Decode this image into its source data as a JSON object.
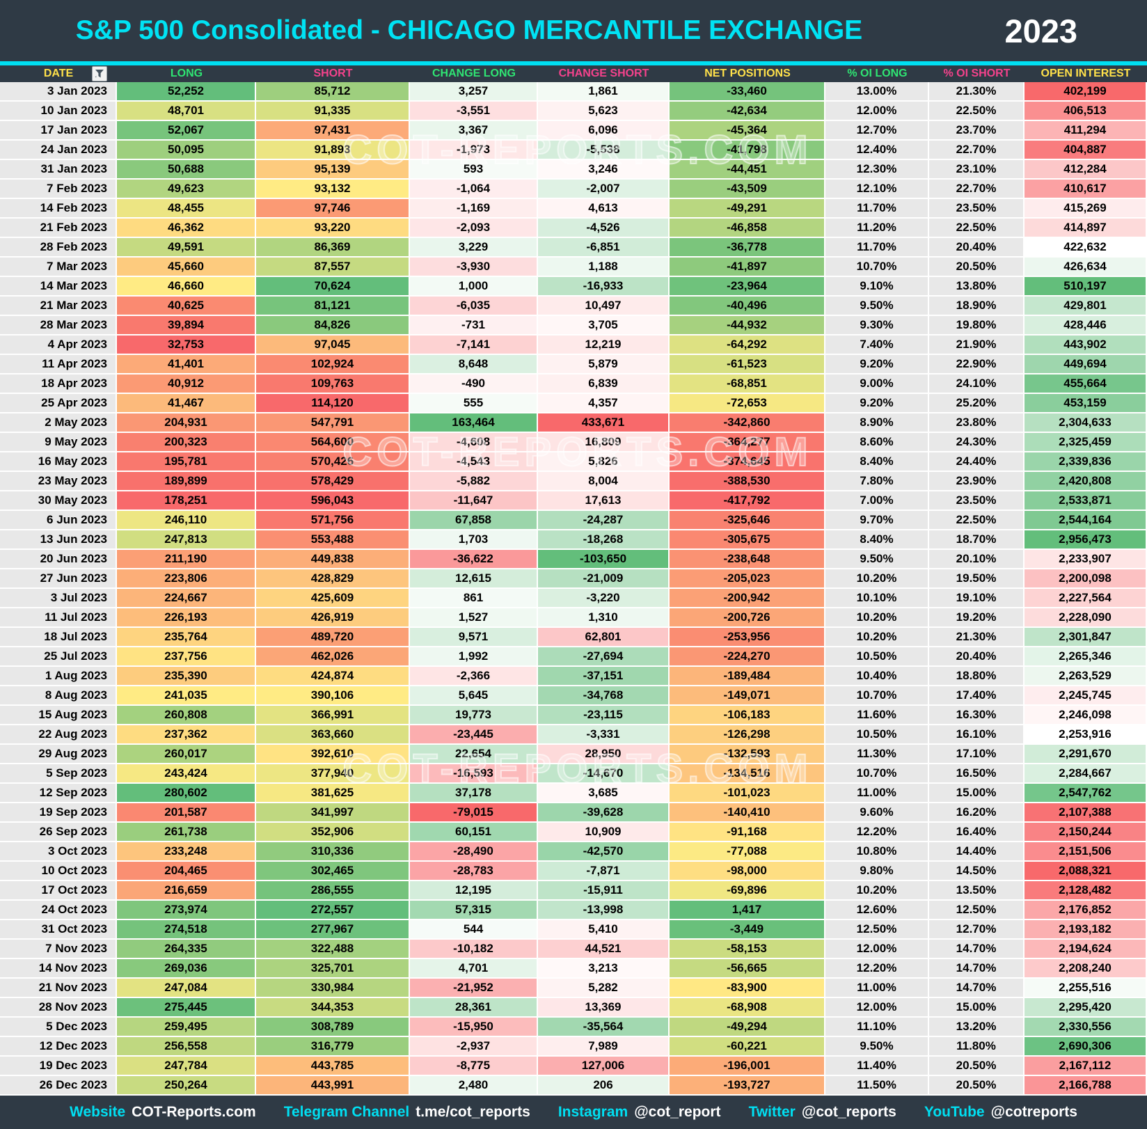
{
  "header": {
    "title": "S&P 500 Consolidated - CHICAGO MERCANTILE EXCHANGE",
    "year": "2023"
  },
  "watermark_text": "COT-REPORTS.COM",
  "palette": {
    "red": "#F8696B",
    "yellow": "#FFEB84",
    "green": "#63BE7B",
    "white": "#FFFFFF",
    "header_bg": "#2F3A45",
    "cyan": "#00DFF2",
    "col_yellow": "#FFE14A",
    "col_green": "#2FE573",
    "col_pink": "#F5428C",
    "gray_cell": "#E8E8E8"
  },
  "chart_data": {
    "type": "table",
    "title": "S&P 500 Consolidated - CHICAGO MERCANTILE EXCHANGE",
    "year": "2023",
    "columns": [
      {
        "id": "date",
        "label": "DATE",
        "hue": "yellow",
        "has_filter": true
      },
      {
        "id": "long",
        "label": "LONG",
        "hue": "green"
      },
      {
        "id": "short",
        "label": "SHORT",
        "hue": "pink"
      },
      {
        "id": "change_long",
        "label": "CHANGE LONG",
        "hue": "green"
      },
      {
        "id": "change_short",
        "label": "CHANGE SHORT",
        "hue": "pink"
      },
      {
        "id": "net",
        "label": "NET POSITIONS",
        "hue": "yellow"
      },
      {
        "id": "oi_long_pct",
        "label": "% OI LONG",
        "hue": "green"
      },
      {
        "id": "oi_short_pct",
        "label": "% OI SHORT",
        "hue": "pink"
      },
      {
        "id": "open_interest",
        "label": "OPEN INTEREST",
        "hue": "yellow"
      }
    ],
    "rows": [
      {
        "date": "3 Jan 2023",
        "long": 52252,
        "short": 85712,
        "change_long": 3257,
        "change_short": 1861,
        "net": -33460,
        "oi_long_pct": "13.00%",
        "oi_short_pct": "21.30%",
        "open_interest": 402199
      },
      {
        "date": "10 Jan 2023",
        "long": 48701,
        "short": 91335,
        "change_long": -3551,
        "change_short": 5623,
        "net": -42634,
        "oi_long_pct": "12.00%",
        "oi_short_pct": "22.50%",
        "open_interest": 406513
      },
      {
        "date": "17 Jan 2023",
        "long": 52067,
        "short": 97431,
        "change_long": 3367,
        "change_short": 6096,
        "net": -45364,
        "oi_long_pct": "12.70%",
        "oi_short_pct": "23.70%",
        "open_interest": 411294
      },
      {
        "date": "24 Jan 2023",
        "long": 50095,
        "short": 91893,
        "change_long": -1973,
        "change_short": -5538,
        "net": -41798,
        "oi_long_pct": "12.40%",
        "oi_short_pct": "22.70%",
        "open_interest": 404887
      },
      {
        "date": "31 Jan 2023",
        "long": 50688,
        "short": 95139,
        "change_long": 593,
        "change_short": 3246,
        "net": -44451,
        "oi_long_pct": "12.30%",
        "oi_short_pct": "23.10%",
        "open_interest": 412284
      },
      {
        "date": "7 Feb 2023",
        "long": 49623,
        "short": 93132,
        "change_long": -1064,
        "change_short": -2007,
        "net": -43509,
        "oi_long_pct": "12.10%",
        "oi_short_pct": "22.70%",
        "open_interest": 410617
      },
      {
        "date": "14 Feb 2023",
        "long": 48455,
        "short": 97746,
        "change_long": -1169,
        "change_short": 4613,
        "net": -49291,
        "oi_long_pct": "11.70%",
        "oi_short_pct": "23.50%",
        "open_interest": 415269
      },
      {
        "date": "21 Feb 2023",
        "long": 46362,
        "short": 93220,
        "change_long": -2093,
        "change_short": -4526,
        "net": -46858,
        "oi_long_pct": "11.20%",
        "oi_short_pct": "22.50%",
        "open_interest": 414897
      },
      {
        "date": "28 Feb 2023",
        "long": 49591,
        "short": 86369,
        "change_long": 3229,
        "change_short": -6851,
        "net": -36778,
        "oi_long_pct": "11.70%",
        "oi_short_pct": "20.40%",
        "open_interest": 422632
      },
      {
        "date": "7 Mar 2023",
        "long": 45660,
        "short": 87557,
        "change_long": -3930,
        "change_short": 1188,
        "net": -41897,
        "oi_long_pct": "10.70%",
        "oi_short_pct": "20.50%",
        "open_interest": 426634
      },
      {
        "date": "14 Mar 2023",
        "long": 46660,
        "short": 70624,
        "change_long": 1000,
        "change_short": -16933,
        "net": -23964,
        "oi_long_pct": "9.10%",
        "oi_short_pct": "13.80%",
        "open_interest": 510197
      },
      {
        "date": "21 Mar 2023",
        "long": 40625,
        "short": 81121,
        "change_long": -6035,
        "change_short": 10497,
        "net": -40496,
        "oi_long_pct": "9.50%",
        "oi_short_pct": "18.90%",
        "open_interest": 429801
      },
      {
        "date": "28 Mar 2023",
        "long": 39894,
        "short": 84826,
        "change_long": -731,
        "change_short": 3705,
        "net": -44932,
        "oi_long_pct": "9.30%",
        "oi_short_pct": "19.80%",
        "open_interest": 428446
      },
      {
        "date": "4 Apr 2023",
        "long": 32753,
        "short": 97045,
        "change_long": -7141,
        "change_short": 12219,
        "net": -64292,
        "oi_long_pct": "7.40%",
        "oi_short_pct": "21.90%",
        "open_interest": 443902
      },
      {
        "date": "11 Apr 2023",
        "long": 41401,
        "short": 102924,
        "change_long": 8648,
        "change_short": 5879,
        "net": -61523,
        "oi_long_pct": "9.20%",
        "oi_short_pct": "22.90%",
        "open_interest": 449694
      },
      {
        "date": "18 Apr 2023",
        "long": 40912,
        "short": 109763,
        "change_long": -490,
        "change_short": 6839,
        "net": -68851,
        "oi_long_pct": "9.00%",
        "oi_short_pct": "24.10%",
        "open_interest": 455664
      },
      {
        "date": "25 Apr 2023",
        "long": 41467,
        "short": 114120,
        "change_long": 555,
        "change_short": 4357,
        "net": -72653,
        "oi_long_pct": "9.20%",
        "oi_short_pct": "25.20%",
        "open_interest": 453159
      },
      {
        "date": "2 May 2023",
        "long": 204931,
        "short": 547791,
        "change_long": 163464,
        "change_short": 433671,
        "net": -342860,
        "oi_long_pct": "8.90%",
        "oi_short_pct": "23.80%",
        "open_interest": 2304633
      },
      {
        "date": "9 May 2023",
        "long": 200323,
        "short": 564600,
        "change_long": -4608,
        "change_short": 16809,
        "net": -364277,
        "oi_long_pct": "8.60%",
        "oi_short_pct": "24.30%",
        "open_interest": 2325459
      },
      {
        "date": "16 May 2023",
        "long": 195781,
        "short": 570426,
        "change_long": -4543,
        "change_short": 5826,
        "net": -374645,
        "oi_long_pct": "8.40%",
        "oi_short_pct": "24.40%",
        "open_interest": 2339836
      },
      {
        "date": "23 May 2023",
        "long": 189899,
        "short": 578429,
        "change_long": -5882,
        "change_short": 8004,
        "net": -388530,
        "oi_long_pct": "7.80%",
        "oi_short_pct": "23.90%",
        "open_interest": 2420808
      },
      {
        "date": "30 May 2023",
        "long": 178251,
        "short": 596043,
        "change_long": -11647,
        "change_short": 17613,
        "net": -417792,
        "oi_long_pct": "7.00%",
        "oi_short_pct": "23.50%",
        "open_interest": 2533871
      },
      {
        "date": "6 Jun 2023",
        "long": 246110,
        "short": 571756,
        "change_long": 67858,
        "change_short": -24287,
        "net": -325646,
        "oi_long_pct": "9.70%",
        "oi_short_pct": "22.50%",
        "open_interest": 2544164
      },
      {
        "date": "13 Jun 2023",
        "long": 247813,
        "short": 553488,
        "change_long": 1703,
        "change_short": -18268,
        "net": -305675,
        "oi_long_pct": "8.40%",
        "oi_short_pct": "18.70%",
        "open_interest": 2956473
      },
      {
        "date": "20 Jun 2023",
        "long": 211190,
        "short": 449838,
        "change_long": -36622,
        "change_short": -103650,
        "net": -238648,
        "oi_long_pct": "9.50%",
        "oi_short_pct": "20.10%",
        "open_interest": 2233907
      },
      {
        "date": "27 Jun 2023",
        "long": 223806,
        "short": 428829,
        "change_long": 12615,
        "change_short": -21009,
        "net": -205023,
        "oi_long_pct": "10.20%",
        "oi_short_pct": "19.50%",
        "open_interest": 2200098
      },
      {
        "date": "3 Jul 2023",
        "long": 224667,
        "short": 425609,
        "change_long": 861,
        "change_short": -3220,
        "net": -200942,
        "oi_long_pct": "10.10%",
        "oi_short_pct": "19.10%",
        "open_interest": 2227564
      },
      {
        "date": "11 Jul 2023",
        "long": 226193,
        "short": 426919,
        "change_long": 1527,
        "change_short": 1310,
        "net": -200726,
        "oi_long_pct": "10.20%",
        "oi_short_pct": "19.20%",
        "open_interest": 2228090
      },
      {
        "date": "18 Jul 2023",
        "long": 235764,
        "short": 489720,
        "change_long": 9571,
        "change_short": 62801,
        "net": -253956,
        "oi_long_pct": "10.20%",
        "oi_short_pct": "21.30%",
        "open_interest": 2301847
      },
      {
        "date": "25 Jul 2023",
        "long": 237756,
        "short": 462026,
        "change_long": 1992,
        "change_short": -27694,
        "net": -224270,
        "oi_long_pct": "10.50%",
        "oi_short_pct": "20.40%",
        "open_interest": 2265346
      },
      {
        "date": "1 Aug 2023",
        "long": 235390,
        "short": 424874,
        "change_long": -2366,
        "change_short": -37151,
        "net": -189484,
        "oi_long_pct": "10.40%",
        "oi_short_pct": "18.80%",
        "open_interest": 2263529
      },
      {
        "date": "8 Aug 2023",
        "long": 241035,
        "short": 390106,
        "change_long": 5645,
        "change_short": -34768,
        "net": -149071,
        "oi_long_pct": "10.70%",
        "oi_short_pct": "17.40%",
        "open_interest": 2245745
      },
      {
        "date": "15 Aug 2023",
        "long": 260808,
        "short": 366991,
        "change_long": 19773,
        "change_short": -23115,
        "net": -106183,
        "oi_long_pct": "11.60%",
        "oi_short_pct": "16.30%",
        "open_interest": 2246098
      },
      {
        "date": "22 Aug 2023",
        "long": 237362,
        "short": 363660,
        "change_long": -23445,
        "change_short": -3331,
        "net": -126298,
        "oi_long_pct": "10.50%",
        "oi_short_pct": "16.10%",
        "open_interest": 2253916
      },
      {
        "date": "29 Aug 2023",
        "long": 260017,
        "short": 392610,
        "change_long": 22654,
        "change_short": 28950,
        "net": -132593,
        "oi_long_pct": "11.30%",
        "oi_short_pct": "17.10%",
        "open_interest": 2291670
      },
      {
        "date": "5 Sep 2023",
        "long": 243424,
        "short": 377940,
        "change_long": -16593,
        "change_short": -14670,
        "net": -134516,
        "oi_long_pct": "10.70%",
        "oi_short_pct": "16.50%",
        "open_interest": 2284667
      },
      {
        "date": "12 Sep 2023",
        "long": 280602,
        "short": 381625,
        "change_long": 37178,
        "change_short": 3685,
        "net": -101023,
        "oi_long_pct": "11.00%",
        "oi_short_pct": "15.00%",
        "open_interest": 2547762
      },
      {
        "date": "19 Sep 2023",
        "long": 201587,
        "short": 341997,
        "change_long": -79015,
        "change_short": -39628,
        "net": -140410,
        "oi_long_pct": "9.60%",
        "oi_short_pct": "16.20%",
        "open_interest": 2107388
      },
      {
        "date": "26 Sep 2023",
        "long": 261738,
        "short": 352906,
        "change_long": 60151,
        "change_short": 10909,
        "net": -91168,
        "oi_long_pct": "12.20%",
        "oi_short_pct": "16.40%",
        "open_interest": 2150244
      },
      {
        "date": "3 Oct 2023",
        "long": 233248,
        "short": 310336,
        "change_long": -28490,
        "change_short": -42570,
        "net": -77088,
        "oi_long_pct": "10.80%",
        "oi_short_pct": "14.40%",
        "open_interest": 2151506
      },
      {
        "date": "10 Oct 2023",
        "long": 204465,
        "short": 302465,
        "change_long": -28783,
        "change_short": -7871,
        "net": -98000,
        "oi_long_pct": "9.80%",
        "oi_short_pct": "14.50%",
        "open_interest": 2088321
      },
      {
        "date": "17 Oct 2023",
        "long": 216659,
        "short": 286555,
        "change_long": 12195,
        "change_short": -15911,
        "net": -69896,
        "oi_long_pct": "10.20%",
        "oi_short_pct": "13.50%",
        "open_interest": 2128482
      },
      {
        "date": "24 Oct 2023",
        "long": 273974,
        "short": 272557,
        "change_long": 57315,
        "change_short": -13998,
        "net": 1417,
        "oi_long_pct": "12.60%",
        "oi_short_pct": "12.50%",
        "open_interest": 2176852
      },
      {
        "date": "31 Oct 2023",
        "long": 274518,
        "short": 277967,
        "change_long": 544,
        "change_short": 5410,
        "net": -3449,
        "oi_long_pct": "12.50%",
        "oi_short_pct": "12.70%",
        "open_interest": 2193182
      },
      {
        "date": "7 Nov 2023",
        "long": 264335,
        "short": 322488,
        "change_long": -10182,
        "change_short": 44521,
        "net": -58153,
        "oi_long_pct": "12.00%",
        "oi_short_pct": "14.70%",
        "open_interest": 2194624
      },
      {
        "date": "14 Nov 2023",
        "long": 269036,
        "short": 325701,
        "change_long": 4701,
        "change_short": 3213,
        "net": -56665,
        "oi_long_pct": "12.20%",
        "oi_short_pct": "14.70%",
        "open_interest": 2208240
      },
      {
        "date": "21 Nov 2023",
        "long": 247084,
        "short": 330984,
        "change_long": -21952,
        "change_short": 5282,
        "net": -83900,
        "oi_long_pct": "11.00%",
        "oi_short_pct": "14.70%",
        "open_interest": 2255516
      },
      {
        "date": "28 Nov 2023",
        "long": 275445,
        "short": 344353,
        "change_long": 28361,
        "change_short": 13369,
        "net": -68908,
        "oi_long_pct": "12.00%",
        "oi_short_pct": "15.00%",
        "open_interest": 2295420
      },
      {
        "date": "5 Dec 2023",
        "long": 259495,
        "short": 308789,
        "change_long": -15950,
        "change_short": -35564,
        "net": -49294,
        "oi_long_pct": "11.10%",
        "oi_short_pct": "13.20%",
        "open_interest": 2330556
      },
      {
        "date": "12 Dec 2023",
        "long": 256558,
        "short": 316779,
        "change_long": -2937,
        "change_short": 7989,
        "net": -60221,
        "oi_long_pct": "9.50%",
        "oi_short_pct": "11.80%",
        "open_interest": 2690306
      },
      {
        "date": "19 Dec 2023",
        "long": 247784,
        "short": 443785,
        "change_long": -8775,
        "change_short": 127006,
        "net": -196001,
        "oi_long_pct": "11.40%",
        "oi_short_pct": "20.50%",
        "open_interest": 2167112
      },
      {
        "date": "26 Dec 2023",
        "long": 250264,
        "short": 443991,
        "change_long": 2480,
        "change_short": 206,
        "net": -193727,
        "oi_long_pct": "11.50%",
        "oi_short_pct": "20.50%",
        "open_interest": 2166788
      }
    ]
  },
  "footer": {
    "items": [
      {
        "label": "Website",
        "value": "COT-Reports.com"
      },
      {
        "label": "Telegram Channel",
        "value": "t.me/cot_reports"
      },
      {
        "label": "Instagram",
        "value": "@cot_report"
      },
      {
        "label": "Twitter",
        "value": "@cot_reports"
      },
      {
        "label": "YouTube",
        "value": "@cotreports"
      }
    ]
  }
}
